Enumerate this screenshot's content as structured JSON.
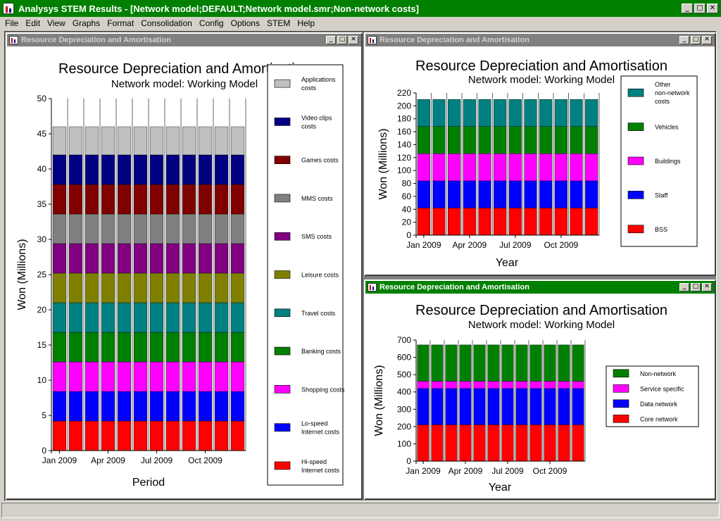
{
  "app": {
    "title": "Analysys STEM Results - [Network model;DEFAULT;Network model.smr;Non-network costs]",
    "window_buttons": {
      "minimize": "_",
      "maximize": "□",
      "close": "✕"
    }
  },
  "menu": [
    "File",
    "Edit",
    "View",
    "Graphs",
    "Format",
    "Consolidation",
    "Config",
    "Options",
    "STEM",
    "Help"
  ],
  "windows": [
    {
      "title": "Resource Depreciation and Amortisation",
      "active": false
    },
    {
      "title": "Resource Depreciation and Amortisation",
      "active": false
    },
    {
      "title": "Resource Depreciation and Amortisation",
      "active": true
    }
  ],
  "colors": {
    "titlebar": "#008000",
    "chrome": "#d4d0c8"
  },
  "chart_data": [
    {
      "type": "bar",
      "stacked": true,
      "title": "Resource Depreciation and Amortisation",
      "subtitle": "Network model:  Working Model",
      "xlabel": "Period",
      "ylabel": "Won  (Millions)",
      "ylim": [
        0,
        50
      ],
      "yticks": [
        0,
        5,
        10,
        15,
        20,
        25,
        30,
        35,
        40,
        45,
        50
      ],
      "categories": [
        "Jan 2009",
        "Feb 2009",
        "Mar 2009",
        "Apr 2009",
        "May 2009",
        "Jun 2009",
        "Jul 2009",
        "Aug 2009",
        "Sep 2009",
        "Oct 2009",
        "Nov 2009",
        "Dec 2009"
      ],
      "xtick_labels": [
        "Jan 2009",
        "Apr 2009",
        "Jul 2009",
        "Oct 2009"
      ],
      "grid": "vertical",
      "legend_position": "right",
      "series": [
        {
          "name": "Hi-speed Internet costs",
          "color": "#ff0000",
          "values": [
            4.2,
            4.2,
            4.2,
            4.2,
            4.2,
            4.2,
            4.2,
            4.2,
            4.2,
            4.2,
            4.2,
            4.2
          ]
        },
        {
          "name": "Lo-speed Internet costs",
          "color": "#0000ff",
          "values": [
            4.2,
            4.2,
            4.2,
            4.2,
            4.2,
            4.2,
            4.2,
            4.2,
            4.2,
            4.2,
            4.2,
            4.2
          ]
        },
        {
          "name": "Shopping costs",
          "color": "#ff00ff",
          "values": [
            4.2,
            4.2,
            4.2,
            4.2,
            4.2,
            4.2,
            4.2,
            4.2,
            4.2,
            4.2,
            4.2,
            4.2
          ]
        },
        {
          "name": "Banking costs",
          "color": "#008000",
          "values": [
            4.2,
            4.2,
            4.2,
            4.2,
            4.2,
            4.2,
            4.2,
            4.2,
            4.2,
            4.2,
            4.2,
            4.2
          ]
        },
        {
          "name": "Travel costs",
          "color": "#008080",
          "values": [
            4.2,
            4.2,
            4.2,
            4.2,
            4.2,
            4.2,
            4.2,
            4.2,
            4.2,
            4.2,
            4.2,
            4.2
          ]
        },
        {
          "name": "Leisure costs",
          "color": "#808000",
          "values": [
            4.2,
            4.2,
            4.2,
            4.2,
            4.2,
            4.2,
            4.2,
            4.2,
            4.2,
            4.2,
            4.2,
            4.2
          ]
        },
        {
          "name": "SMS costs",
          "color": "#800080",
          "values": [
            4.2,
            4.2,
            4.2,
            4.2,
            4.2,
            4.2,
            4.2,
            4.2,
            4.2,
            4.2,
            4.2,
            4.2
          ]
        },
        {
          "name": "MMS costs",
          "color": "#808080",
          "values": [
            4.2,
            4.2,
            4.2,
            4.2,
            4.2,
            4.2,
            4.2,
            4.2,
            4.2,
            4.2,
            4.2,
            4.2
          ]
        },
        {
          "name": "Games costs",
          "color": "#800000",
          "values": [
            4.2,
            4.2,
            4.2,
            4.2,
            4.2,
            4.2,
            4.2,
            4.2,
            4.2,
            4.2,
            4.2,
            4.2
          ]
        },
        {
          "name": "Video clips costs",
          "color": "#000080",
          "values": [
            4.2,
            4.2,
            4.2,
            4.2,
            4.2,
            4.2,
            4.2,
            4.2,
            4.2,
            4.2,
            4.2,
            4.2
          ]
        },
        {
          "name": "Applications costs",
          "color": "#c0c0c0",
          "values": [
            4.0,
            4.0,
            4.0,
            4.0,
            4.0,
            4.0,
            4.0,
            4.0,
            4.0,
            4.0,
            4.0,
            4.0
          ]
        }
      ]
    },
    {
      "type": "bar",
      "stacked": true,
      "title": "Resource Depreciation and Amortisation",
      "subtitle": "Network model:  Working Model",
      "xlabel": "Year",
      "ylabel": "Won  (Millions)",
      "ylim": [
        0,
        220
      ],
      "yticks": [
        0,
        20,
        40,
        60,
        80,
        100,
        120,
        140,
        160,
        180,
        200,
        220
      ],
      "categories": [
        "Jan 2009",
        "Feb 2009",
        "Mar 2009",
        "Apr 2009",
        "May 2009",
        "Jun 2009",
        "Jul 2009",
        "Aug 2009",
        "Sep 2009",
        "Oct 2009",
        "Nov 2009",
        "Dec 2009"
      ],
      "xtick_labels": [
        "Jan 2009",
        "Apr 2009",
        "Jul 2009",
        "Oct 2009"
      ],
      "grid": "vertical",
      "legend_position": "right",
      "series": [
        {
          "name": "BSS",
          "color": "#ff0000",
          "values": [
            42,
            42,
            42,
            42,
            42,
            42,
            42,
            42,
            42,
            42,
            42,
            42
          ]
        },
        {
          "name": "Staff",
          "color": "#0000ff",
          "values": [
            42,
            42,
            42,
            42,
            42,
            42,
            42,
            42,
            42,
            42,
            42,
            42
          ]
        },
        {
          "name": "Buildings",
          "color": "#ff00ff",
          "values": [
            42,
            42,
            42,
            42,
            42,
            42,
            42,
            42,
            42,
            42,
            42,
            42
          ]
        },
        {
          "name": "Vehicles",
          "color": "#008000",
          "values": [
            42,
            42,
            42,
            42,
            42,
            42,
            42,
            42,
            42,
            42,
            42,
            42
          ]
        },
        {
          "name": "Other non-network costs",
          "color": "#008080",
          "values": [
            42,
            42,
            42,
            42,
            42,
            42,
            42,
            42,
            42,
            42,
            42,
            42
          ]
        }
      ]
    },
    {
      "type": "bar",
      "stacked": true,
      "title": "Resource Depreciation and Amortisation",
      "subtitle": "Network model:  Working Model",
      "xlabel": "Year",
      "ylabel": "Won  (Millions)",
      "ylim": [
        0,
        700
      ],
      "yticks": [
        0,
        100,
        200,
        300,
        400,
        500,
        600,
        700
      ],
      "categories": [
        "Jan 2009",
        "Feb 2009",
        "Mar 2009",
        "Apr 2009",
        "May 2009",
        "Jun 2009",
        "Jul 2009",
        "Aug 2009",
        "Sep 2009",
        "Oct 2009",
        "Nov 2009",
        "Dec 2009"
      ],
      "xtick_labels": [
        "Jan 2009",
        "Apr 2009",
        "Jul 2009",
        "Oct 2009"
      ],
      "grid": "vertical",
      "legend_position": "right",
      "series": [
        {
          "name": "Core network",
          "color": "#ff0000",
          "values": [
            210,
            210,
            210,
            210,
            210,
            210,
            210,
            210,
            210,
            210,
            210,
            210
          ]
        },
        {
          "name": "Data network",
          "color": "#0000ff",
          "values": [
            210,
            210,
            210,
            210,
            210,
            210,
            210,
            210,
            210,
            210,
            210,
            210
          ]
        },
        {
          "name": "Service specific",
          "color": "#ff00ff",
          "values": [
            42,
            42,
            42,
            42,
            42,
            42,
            42,
            42,
            42,
            42,
            42,
            42
          ]
        },
        {
          "name": "Non-network",
          "color": "#008000",
          "values": [
            210,
            210,
            210,
            210,
            210,
            210,
            210,
            210,
            210,
            210,
            210,
            210
          ]
        }
      ]
    }
  ]
}
